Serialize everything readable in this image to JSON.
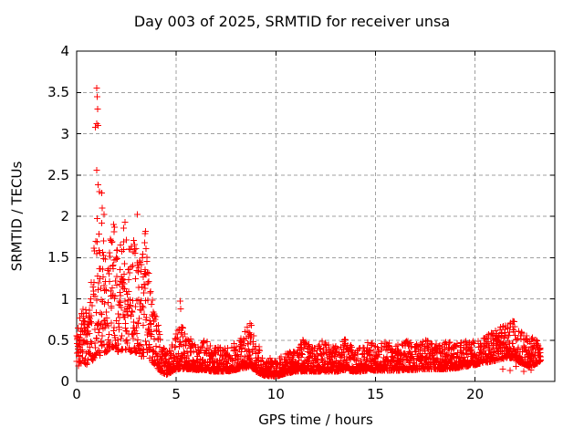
{
  "window": {
    "background": "#ffffff",
    "text_color": "#000000"
  },
  "chart_data": {
    "type": "scatter",
    "title": "Day 003 of 2025, SRMTID for receiver unsa",
    "xlabel": "GPS time / hours",
    "ylabel": "SRMTID / TECUs",
    "xlim": [
      0,
      24
    ],
    "ylim": [
      0,
      4
    ],
    "xticks": [
      0,
      5,
      10,
      15,
      20
    ],
    "yticks": [
      0,
      0.5,
      1,
      1.5,
      2,
      2.5,
      3,
      3.5,
      4
    ],
    "grid": true,
    "grid_style": "dashed",
    "grid_color": "#a0a0a0",
    "axis_color": "#000000",
    "legend": "none",
    "marker": {
      "shape": "plus",
      "color": "#ff0000",
      "size": 7
    },
    "series": [
      {
        "name": "SRMTID",
        "t_start": 0.0,
        "t_end": 23.3,
        "points_per_hour": 120,
        "envelope_t_lo_hi": [
          [
            0.0,
            0.18,
            0.55
          ],
          [
            0.2,
            0.2,
            0.85
          ],
          [
            0.4,
            0.2,
            0.9
          ],
          [
            0.6,
            0.2,
            0.8
          ],
          [
            0.8,
            0.25,
            1.4
          ],
          [
            0.95,
            0.3,
            2.0
          ],
          [
            1.1,
            0.3,
            1.8
          ],
          [
            1.3,
            0.35,
            2.05
          ],
          [
            1.5,
            0.35,
            1.4
          ],
          [
            1.7,
            0.4,
            1.75
          ],
          [
            1.9,
            0.4,
            1.95
          ],
          [
            2.1,
            0.35,
            1.5
          ],
          [
            2.4,
            0.4,
            1.95
          ],
          [
            2.6,
            0.35,
            1.6
          ],
          [
            2.8,
            0.35,
            1.7
          ],
          [
            3.0,
            0.35,
            2.0
          ],
          [
            3.2,
            0.3,
            1.65
          ],
          [
            3.45,
            0.3,
            1.85
          ],
          [
            3.7,
            0.25,
            1.2
          ],
          [
            3.95,
            0.2,
            0.85
          ],
          [
            4.2,
            0.12,
            0.55
          ],
          [
            4.5,
            0.08,
            0.35
          ],
          [
            4.8,
            0.12,
            0.45
          ],
          [
            5.0,
            0.15,
            0.6
          ],
          [
            5.3,
            0.15,
            0.68
          ],
          [
            5.6,
            0.15,
            0.55
          ],
          [
            6.0,
            0.14,
            0.45
          ],
          [
            6.4,
            0.14,
            0.52
          ],
          [
            6.8,
            0.12,
            0.42
          ],
          [
            7.2,
            0.12,
            0.46
          ],
          [
            7.6,
            0.12,
            0.42
          ],
          [
            8.0,
            0.14,
            0.48
          ],
          [
            8.4,
            0.16,
            0.58
          ],
          [
            8.7,
            0.18,
            0.73
          ],
          [
            9.0,
            0.12,
            0.5
          ],
          [
            9.4,
            0.07,
            0.3
          ],
          [
            10.0,
            0.06,
            0.27
          ],
          [
            10.6,
            0.1,
            0.36
          ],
          [
            11.0,
            0.12,
            0.42
          ],
          [
            11.5,
            0.12,
            0.55
          ],
          [
            11.9,
            0.12,
            0.4
          ],
          [
            12.3,
            0.12,
            0.5
          ],
          [
            12.7,
            0.12,
            0.44
          ],
          [
            13.1,
            0.12,
            0.42
          ],
          [
            13.5,
            0.14,
            0.54
          ],
          [
            13.9,
            0.12,
            0.4
          ],
          [
            14.3,
            0.12,
            0.42
          ],
          [
            14.7,
            0.14,
            0.5
          ],
          [
            15.1,
            0.13,
            0.44
          ],
          [
            15.5,
            0.13,
            0.48
          ],
          [
            16.0,
            0.13,
            0.44
          ],
          [
            16.5,
            0.14,
            0.5
          ],
          [
            17.0,
            0.14,
            0.44
          ],
          [
            17.5,
            0.15,
            0.5
          ],
          [
            18.0,
            0.15,
            0.46
          ],
          [
            18.5,
            0.15,
            0.5
          ],
          [
            19.0,
            0.16,
            0.45
          ],
          [
            19.5,
            0.18,
            0.5
          ],
          [
            20.0,
            0.2,
            0.48
          ],
          [
            20.5,
            0.22,
            0.55
          ],
          [
            21.0,
            0.25,
            0.62
          ],
          [
            21.5,
            0.28,
            0.7
          ],
          [
            21.9,
            0.28,
            0.75
          ],
          [
            22.3,
            0.22,
            0.62
          ],
          [
            22.7,
            0.18,
            0.55
          ],
          [
            23.0,
            0.2,
            0.52
          ],
          [
            23.3,
            0.25,
            0.48
          ]
        ],
        "notable_points": [
          [
            0.95,
            3.08
          ],
          [
            1.0,
            3.55
          ],
          [
            1.0,
            3.12
          ],
          [
            1.02,
            3.45
          ],
          [
            1.05,
            3.3
          ],
          [
            1.07,
            3.1
          ],
          [
            1.0,
            2.56
          ],
          [
            1.08,
            2.38
          ],
          [
            1.15,
            2.3
          ],
          [
            1.25,
            2.28
          ],
          [
            1.28,
            2.1
          ],
          [
            1.38,
            2.02
          ],
          [
            1.02,
            1.97
          ],
          [
            1.85,
            1.9
          ],
          [
            2.42,
            1.93
          ],
          [
            3.05,
            2.02
          ],
          [
            3.45,
            1.82
          ],
          [
            5.2,
            0.97
          ],
          [
            5.22,
            0.88
          ],
          [
            8.7,
            0.7
          ],
          [
            21.9,
            0.73
          ],
          [
            21.4,
            0.15
          ],
          [
            21.75,
            0.13
          ],
          [
            22.05,
            0.18
          ],
          [
            22.45,
            0.12
          ],
          [
            22.8,
            0.14
          ]
        ]
      }
    ]
  }
}
